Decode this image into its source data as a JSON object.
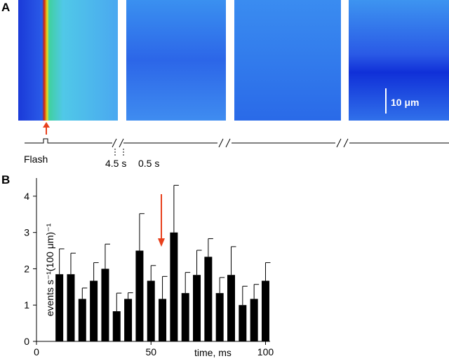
{
  "panel_a": {
    "label": "A",
    "scale_bar": "10 μm",
    "flash": "Flash",
    "gap_1": "4.5 s",
    "gap_2": "0.5 s"
  },
  "chart_data": {
    "type": "bar",
    "panel_label": "B",
    "x_label": "time, ms",
    "y_label": "events s⁻¹(100 μm)⁻¹",
    "x": [
      10,
      15,
      20,
      25,
      30,
      35,
      40,
      45,
      50,
      55,
      60,
      65,
      70,
      75,
      80,
      85,
      90,
      95,
      100
    ],
    "values": [
      1.85,
      1.85,
      1.17,
      1.67,
      2.0,
      0.83,
      1.17,
      2.5,
      1.67,
      1.17,
      3.0,
      1.33,
      1.83,
      2.33,
      1.33,
      1.83,
      1.0,
      1.17,
      1.67
    ],
    "errors": [
      0.7,
      0.58,
      0.3,
      0.5,
      0.68,
      0.5,
      0.17,
      1.02,
      0.42,
      0.62,
      1.3,
      0.57,
      0.68,
      0.5,
      0.43,
      0.78,
      0.52,
      0.4,
      0.5
    ],
    "color": "#000000",
    "xlim": [
      0,
      102
    ],
    "xticks": [
      0,
      50,
      100
    ],
    "ylim": [
      0,
      4.5
    ],
    "yticks": [
      0,
      1,
      2,
      3,
      4
    ]
  }
}
